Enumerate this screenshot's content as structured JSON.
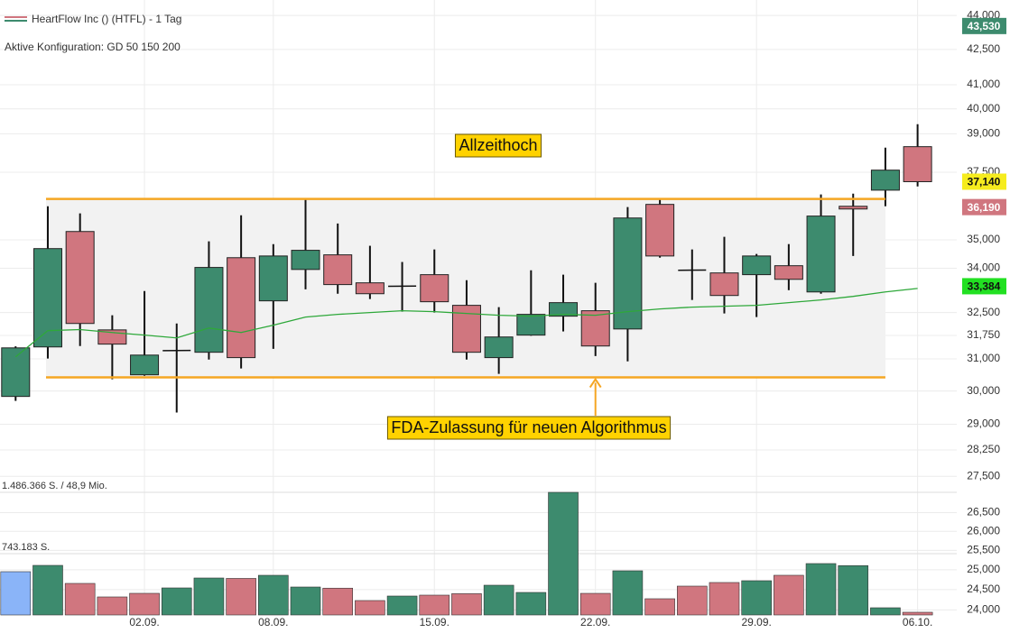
{
  "header": {
    "title": "HeartFlow Inc () (HTFL) - 1 Tag",
    "config": "Aktive Konfiguration: GD 50 150 200"
  },
  "chart_data": {
    "type": "candlestick",
    "categories": [
      null,
      null,
      null,
      null,
      "02.09.",
      null,
      null,
      null,
      "08.09.",
      null,
      null,
      null,
      null,
      "15.09.",
      null,
      null,
      null,
      null,
      "22.09.",
      null,
      null,
      null,
      null,
      "29.09.",
      null,
      null,
      null,
      null,
      "06.10."
    ],
    "open": [
      29835,
      31380,
      35300,
      31930,
      30500,
      31260,
      31210,
      34370,
      32890,
      33960,
      34470,
      33500,
      33380,
      33780,
      32740,
      31040,
      31760,
      32380,
      32560,
      31960,
      36290,
      33930,
      33840,
      33780,
      34090,
      33190,
      36220,
      36820,
      38490
    ],
    "high": [
      31400,
      36220,
      35960,
      32410,
      33220,
      32140,
      34950,
      35890,
      34850,
      36490,
      35590,
      34790,
      34220,
      34660,
      33590,
      32680,
      33930,
      33780,
      33500,
      36190,
      36490,
      34660,
      35110,
      34500,
      34850,
      36660,
      36690,
      38450,
      39380
    ],
    "low": [
      29700,
      31010,
      31410,
      30360,
      30470,
      29350,
      30980,
      30700,
      31320,
      33280,
      33130,
      32950,
      32530,
      32500,
      30980,
      30530,
      31740,
      31880,
      31090,
      30920,
      34370,
      32920,
      32470,
      32350,
      33250,
      33130,
      34430,
      36220,
      36960
    ],
    "close": [
      31350,
      34690,
      32140,
      31470,
      31120,
      31270,
      34030,
      31040,
      34430,
      34630,
      33440,
      33130,
      33390,
      32860,
      31210,
      31700,
      32440,
      32830,
      31410,
      35790,
      34430,
      33940,
      33070,
      34430,
      33620,
      35860,
      36120,
      37580,
      37140
    ],
    "up_color": "#3d8b6e",
    "down_color": "#d0767f",
    "doji_color": "#111111",
    "log_scale": true,
    "ylim": [
      23700,
      44700
    ],
    "yticks": [
      {
        "value": 44000,
        "label": "44,000"
      },
      {
        "value": 42500,
        "label": "42,500"
      },
      {
        "value": 41000,
        "label": "41,000"
      },
      {
        "value": 40000,
        "label": "40,000"
      },
      {
        "value": 39000,
        "label": "39,000"
      },
      {
        "value": 37500,
        "label": "37,500"
      },
      {
        "value": 35000,
        "label": "35,000"
      },
      {
        "value": 34000,
        "label": "34,000"
      },
      {
        "value": 32500,
        "label": "32,500"
      },
      {
        "value": 31750,
        "label": "31,750"
      },
      {
        "value": 31000,
        "label": "31,000"
      },
      {
        "value": 30000,
        "label": "30,000"
      },
      {
        "value": 29000,
        "label": "29,000"
      },
      {
        "value": 28250,
        "label": "28,250"
      },
      {
        "value": 27500,
        "label": "27,500"
      },
      {
        "value": 26500,
        "label": "26,500"
      },
      {
        "value": 26000,
        "label": "26,000"
      },
      {
        "value": 25500,
        "label": "25,500"
      },
      {
        "value": 25000,
        "label": "25,000"
      },
      {
        "value": 24500,
        "label": "24,500"
      },
      {
        "value": 24000,
        "label": "24,000"
      }
    ],
    "grid": true,
    "moving_average": {
      "color": "#2ea83a",
      "values": [
        31065,
        31906,
        31940,
        31845,
        31760,
        31670,
        31990,
        31845,
        32085,
        32350,
        32440,
        32500,
        32560,
        32530,
        32470,
        32410,
        32380,
        32440,
        32410,
        32530,
        32620,
        32680,
        32710,
        32740,
        32830,
        32920,
        33040,
        33190,
        33310
      ]
    },
    "volume": {
      "values": [
        524600,
        601100,
        382500,
        218600,
        262300,
        327900,
        448100,
        443000,
        480900,
        338800,
        325000,
        174900,
        229500,
        240400,
        258000,
        360700,
        273200,
        1486366,
        262000,
        535500,
        196700,
        349700,
        393500,
        415300,
        481000,
        623000,
        598000,
        87400,
        32800
      ],
      "colors": [
        "#8ab4f8",
        "#3d8b6e",
        "#d0767f",
        "#d0767f",
        "#d0767f",
        "#3d8b6e",
        "#3d8b6e",
        "#d0767f",
        "#3d8b6e",
        "#3d8b6e",
        "#d0767f",
        "#d0767f",
        "#3d8b6e",
        "#d0767f",
        "#d0767f",
        "#3d8b6e",
        "#3d8b6e",
        "#3d8b6e",
        "#d0767f",
        "#3d8b6e",
        "#d0767f",
        "#d0767f",
        "#d0767f",
        "#3d8b6e",
        "#d0767f",
        "#3d8b6e",
        "#3d8b6e",
        "#3d8b6e",
        "#d0767f"
      ],
      "vlim": [
        0,
        1486366
      ],
      "vticks": [
        {
          "value": 1486366,
          "label": "1.486.366 S. / 48,9 Mio."
        },
        {
          "value": 743183,
          "label": "743.183 S."
        }
      ]
    },
    "price_labels": {
      "values": [
        43530,
        37140,
        36190,
        33384
      ],
      "value_labels": [
        "43,530",
        "37,140",
        "36,190",
        "33,384"
      ],
      "colors": [
        "#3d8b6e",
        "#f6ec1e",
        "#d0767f",
        "#22e022"
      ],
      "text_colors": [
        "#ffffff",
        "#111111",
        "#ffffff",
        "#111111"
      ]
    },
    "range_zone": {
      "upper": 36490,
      "lower": 30420,
      "line_color": "#f5a623",
      "fill": "#f2f2f2"
    },
    "annotations": [
      {
        "text": "Allzeithoch"
      },
      {
        "text": "FDA-Zulassung für neuen Algorithmus"
      }
    ]
  }
}
